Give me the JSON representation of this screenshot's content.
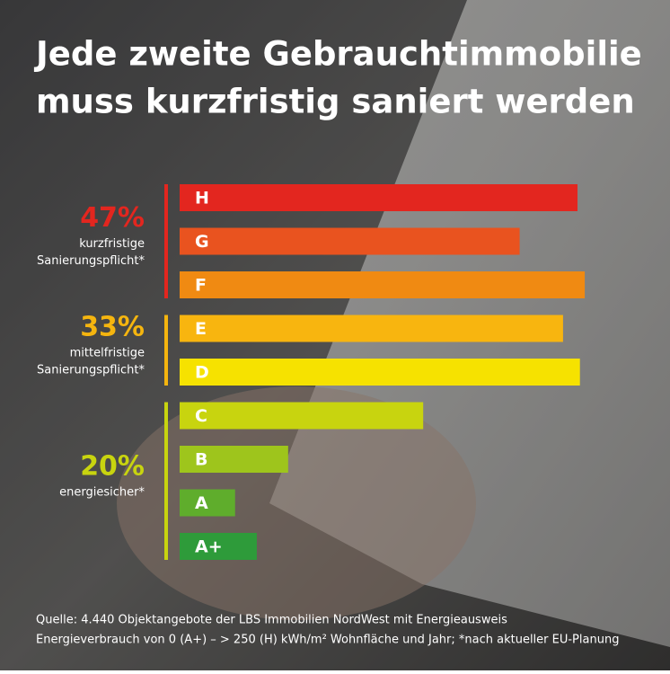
{
  "chart_data": {
    "type": "bar",
    "orientation": "horizontal",
    "title": [
      "Jede zweite Gebrauchtimmobilie",
      "muss kurzfristig saniert werden"
    ],
    "categories": [
      "H",
      "G",
      "F",
      "E",
      "D",
      "C",
      "B",
      "A",
      "A+"
    ],
    "values": [
      16.5,
      14.1,
      16.8,
      15.9,
      16.6,
      10.1,
      4.5,
      2.3,
      3.2
    ],
    "colors": [
      "#e3261f",
      "#e9531f",
      "#f08a12",
      "#f8b50f",
      "#f6e200",
      "#c8d40f",
      "#9ec51c",
      "#5fad2c",
      "#2e9b3a"
    ],
    "xlim": [
      0,
      20
    ],
    "groups": [
      {
        "value": 47,
        "label": "47%",
        "text": [
          "kurzfristige",
          "Sanierungspflicht*"
        ],
        "color": "#e3261f",
        "categories": [
          0,
          2
        ]
      },
      {
        "value": 33,
        "label": "33%",
        "text": [
          "mittelfristige",
          "Sanierungspflicht*"
        ],
        "color": "#f5b50f",
        "categories": [
          3,
          4
        ]
      },
      {
        "value": 20,
        "label": "20%",
        "text": [
          "energiesicher*"
        ],
        "color": "#c8d40f",
        "categories": [
          5,
          8
        ]
      }
    ],
    "source": [
      "Quelle: 4.440 Objektangebote der LBS Immobilien NordWest mit Energieausweis",
      "Energieverbrauch von 0 (A+) – > 250 (H) kWh/m² Wohnfläche und Jahr; *nach aktueller EU-Planung"
    ]
  }
}
